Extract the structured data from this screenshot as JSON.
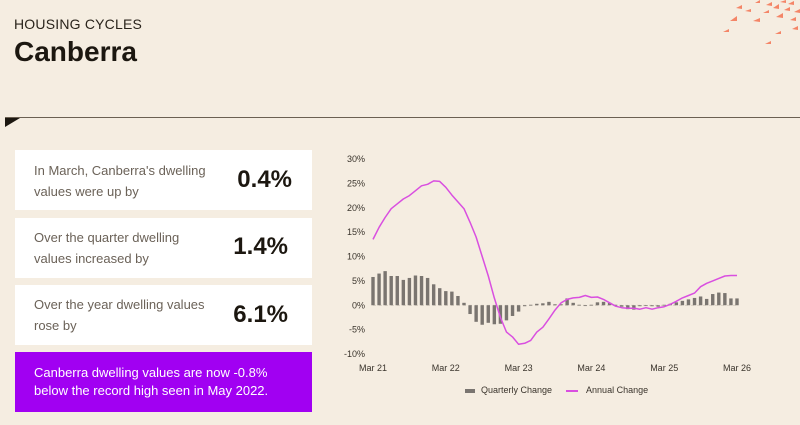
{
  "header": {
    "eyebrow": "HOUSING CYCLES",
    "title": "Canberra"
  },
  "cards": [
    {
      "label": "In March, Canberra's dwelling values were up by",
      "value": "0.4%"
    },
    {
      "label": "Over the quarter dwelling values increased by",
      "value": "1.4%"
    },
    {
      "label": "Over the year dwelling values rose by",
      "value": "6.1%"
    }
  ],
  "callout": {
    "text": "Canberra dwelling values are now -0.8% below the record high seen in May 2022."
  },
  "legend": {
    "quarterly": "Quarterly Change",
    "annual": "Annual Change"
  },
  "colors": {
    "background": "#f5ede1",
    "callout": "#a100f2",
    "bar": "#7a7570",
    "line": "#d94fe0",
    "accent_flock": "#f47a5a"
  },
  "chart_data": {
    "type": "bar+line",
    "title": "",
    "xlabel": "",
    "ylabel": "",
    "ylim": [
      -10,
      30
    ],
    "yticks": [
      "30%",
      "25%",
      "20%",
      "15%",
      "10%",
      "5%",
      "0%",
      "-5%",
      "-10%"
    ],
    "xticks": [
      "Mar 21",
      "Mar 22",
      "Mar 23",
      "Mar 24",
      "Mar 25",
      "Mar 26"
    ],
    "grid": false,
    "legend_position": "bottom",
    "x_start": "Mar 21",
    "x_end": "Mar 26",
    "frequency": "monthly",
    "series": [
      {
        "name": "Quarterly Change",
        "type": "bar",
        "values": [
          5.8,
          6.5,
          7.0,
          6.0,
          6.0,
          5.2,
          5.6,
          6.1,
          6.0,
          5.6,
          4.3,
          3.5,
          2.9,
          2.8,
          1.9,
          0.5,
          -1.8,
          -3.4,
          -4.0,
          -3.6,
          -3.9,
          -3.8,
          -3.1,
          -2.2,
          -1.3,
          -0.2,
          0.1,
          0.3,
          0.4,
          0.7,
          0.2,
          0.2,
          1.4,
          0.5,
          0.1,
          -0.1,
          0.1,
          0.6,
          0.7,
          0.5,
          0.1,
          -0.3,
          -0.8,
          -0.9,
          -0.2,
          -0.1,
          -0.2,
          -0.3,
          0.1,
          0.3,
          0.6,
          0.9,
          1.2,
          1.5,
          1.8,
          1.3,
          2.3,
          2.6,
          2.5,
          1.4,
          1.4
        ]
      },
      {
        "name": "Annual Change",
        "type": "line",
        "values": [
          13.5,
          16.0,
          18.0,
          19.8,
          20.8,
          21.8,
          22.5,
          23.5,
          24.5,
          24.8,
          25.5,
          25.4,
          24.2,
          22.6,
          21.2,
          19.8,
          17.0,
          14.0,
          10.0,
          6.0,
          1.5,
          -2.5,
          -5.5,
          -6.5,
          -8.0,
          -7.8,
          -7.2,
          -5.5,
          -4.5,
          -2.8,
          -1.0,
          0.5,
          1.2,
          1.5,
          1.6,
          2.0,
          1.6,
          1.7,
          1.2,
          0.5,
          -0.2,
          -0.5,
          -0.6,
          -0.6,
          -0.8,
          -0.5,
          -0.8,
          -0.5,
          -0.3,
          0.2,
          0.8,
          1.5,
          2.0,
          2.5,
          3.8,
          4.5,
          5.0,
          5.5,
          6.0,
          6.1,
          6.1
        ]
      }
    ]
  }
}
